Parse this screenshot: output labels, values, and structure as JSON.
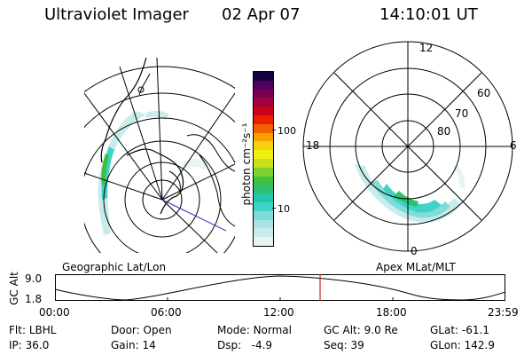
{
  "header": {
    "instrument": "Ultraviolet Imager",
    "date": "02 Apr 07",
    "time": "14:10:01 UT"
  },
  "colorbar": {
    "label": "photon cm⁻²s⁻¹",
    "ticks": [
      "100",
      "10"
    ],
    "colors": [
      "#e8f4f4",
      "#c8ecec",
      "#a8e4e4",
      "#80dcd8",
      "#40d4c8",
      "#20c8a8",
      "#30c070",
      "#40c040",
      "#80d030",
      "#c8e020",
      "#f0f010",
      "#f8d010",
      "#f8a000",
      "#f06000",
      "#e82000",
      "#c80018",
      "#a00040",
      "#780050",
      "#500060",
      "#180040"
    ]
  },
  "maps": {
    "left_caption": "Geographic Lat/Lon",
    "right_caption": "Apex MLat/MLT",
    "mlt_labels": {
      "top": "12",
      "left": "18",
      "right": "6",
      "bottom": "0"
    },
    "lat_labels": [
      "60",
      "70",
      "80"
    ]
  },
  "altitude_plot": {
    "ylabel": "GC Alt",
    "y_ticks": [
      "9.0",
      "1.8"
    ],
    "x_ticks": [
      "00:00",
      "06:00",
      "12:00",
      "18:00",
      "23:59"
    ],
    "current_time_marker": "14:10"
  },
  "info": {
    "flt_label": "Flt:",
    "flt": "LBHL",
    "ip_label": "IP:",
    "ip": "36.0",
    "door_label": "Door:",
    "door": "Open",
    "gain_label": "Gain:",
    "gain": "14",
    "mode_label": "Mode:",
    "mode": "Normal",
    "dsp_label": "Dsp:",
    "dsp": "-4.9",
    "gcalt_label": "GC Alt:",
    "gcalt": "9.0 Re",
    "seq_label": "Seq:",
    "seq": "39",
    "glat_label": "GLat:",
    "glat": "-61.1",
    "glon_label": "GLon:",
    "glon": "142.9"
  }
}
